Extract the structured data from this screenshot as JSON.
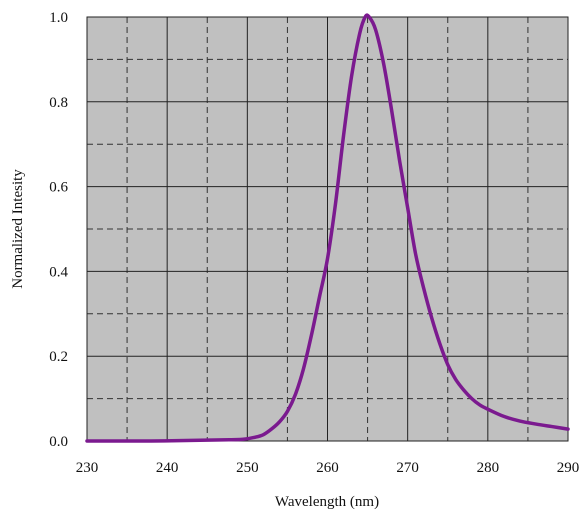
{
  "chart_data": {
    "type": "line",
    "title": "",
    "xlabel": "Wavelength (nm)",
    "ylabel": "Normalized Intesity",
    "xlim": [
      230,
      290
    ],
    "ylim": [
      0.0,
      1.0
    ],
    "x_ticks": [
      230,
      240,
      250,
      260,
      270,
      280,
      290
    ],
    "x_tick_labels": [
      "230",
      "240",
      "250",
      "260",
      "270",
      "280",
      "290"
    ],
    "y_ticks": [
      0.0,
      0.2,
      0.4,
      0.6,
      0.8,
      1.0
    ],
    "y_tick_labels": [
      "0.0",
      "0.2",
      "0.4",
      "0.6",
      "0.8",
      "1.0"
    ],
    "major_grid": true,
    "minor_grid_dashed": true,
    "plot_background": "#c0c0c0",
    "legend": "none",
    "series": [
      {
        "color": "#7b1a8f",
        "x": [
          230,
          238,
          245,
          248,
          249.5,
          251,
          252,
          253,
          254,
          255,
          256,
          257,
          258,
          259,
          260,
          261,
          262,
          263,
          264,
          264.7,
          265.2,
          266,
          267,
          268,
          269,
          270,
          271,
          272,
          273,
          274,
          275,
          276,
          277,
          278,
          279,
          280,
          282,
          284,
          286,
          288,
          290
        ],
        "y": [
          0.0,
          0.0,
          0.002,
          0.003,
          0.004,
          0.009,
          0.015,
          0.028,
          0.045,
          0.07,
          0.11,
          0.17,
          0.25,
          0.34,
          0.43,
          0.56,
          0.72,
          0.86,
          0.96,
          1.0,
          1.0,
          0.97,
          0.89,
          0.78,
          0.66,
          0.55,
          0.44,
          0.36,
          0.29,
          0.23,
          0.18,
          0.145,
          0.12,
          0.1,
          0.085,
          0.075,
          0.058,
          0.047,
          0.04,
          0.034,
          0.028
        ]
      }
    ]
  }
}
